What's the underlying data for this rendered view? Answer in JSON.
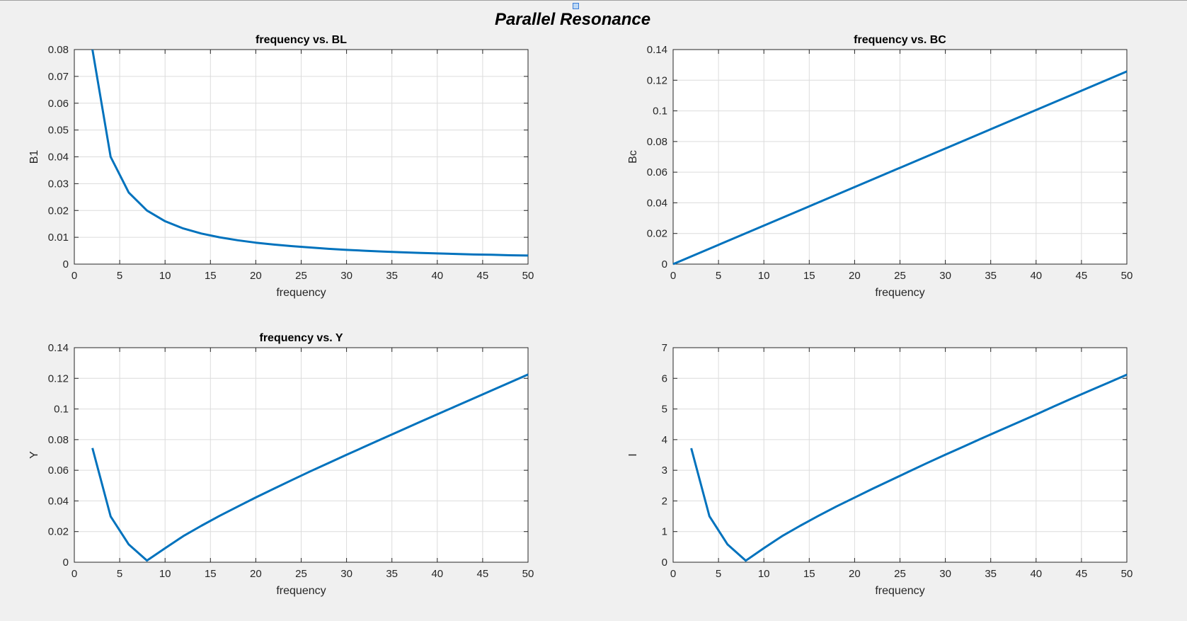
{
  "figure": {
    "title": "Parallel Resonance",
    "line_color": "#0072bd",
    "grid": true
  },
  "chart_data": [
    {
      "type": "line",
      "title": "frequency vs. BL",
      "xlabel": "frequency",
      "ylabel": "B1",
      "xlim": [
        0,
        50
      ],
      "ylim": [
        0,
        0.08
      ],
      "xticks": [
        "0",
        "5",
        "10",
        "15",
        "20",
        "25",
        "30",
        "35",
        "40",
        "45",
        "50"
      ],
      "yticks": [
        "0",
        "0.01",
        "0.02",
        "0.03",
        "0.04",
        "0.05",
        "0.06",
        "0.07",
        "0.08"
      ],
      "series": [
        {
          "x": [
            2,
            4,
            6,
            8,
            10,
            12,
            14,
            16,
            18,
            20,
            22,
            24,
            26,
            28,
            30,
            32,
            34,
            36,
            38,
            40,
            42,
            44,
            46,
            48,
            50
          ],
          "y": [
            0.08,
            0.04,
            0.0267,
            0.02,
            0.016,
            0.0133,
            0.0114,
            0.01,
            0.0089,
            0.008,
            0.0073,
            0.0067,
            0.0062,
            0.0057,
            0.0053,
            0.005,
            0.0047,
            0.0044,
            0.0042,
            0.004,
            0.0038,
            0.0036,
            0.0035,
            0.0033,
            0.0032
          ]
        }
      ]
    },
    {
      "type": "line",
      "title": "frequency vs. BC",
      "xlabel": "frequency",
      "ylabel": "Bc",
      "xlim": [
        0,
        50
      ],
      "ylim": [
        0,
        0.14
      ],
      "xticks": [
        "0",
        "5",
        "10",
        "15",
        "20",
        "25",
        "30",
        "35",
        "40",
        "45",
        "50"
      ],
      "yticks": [
        "0",
        "0.02",
        "0.04",
        "0.06",
        "0.08",
        "0.1",
        "0.12",
        "0.14"
      ],
      "series": [
        {
          "x": [
            0,
            50
          ],
          "y": [
            0,
            0.1257
          ]
        }
      ]
    },
    {
      "type": "line",
      "title": "frequency vs. Y",
      "xlabel": "frequency",
      "ylabel": "Y",
      "xlim": [
        0,
        50
      ],
      "ylim": [
        0,
        0.14
      ],
      "xticks": [
        "0",
        "5",
        "10",
        "15",
        "20",
        "25",
        "30",
        "35",
        "40",
        "45",
        "50"
      ],
      "yticks": [
        "0",
        "0.02",
        "0.04",
        "0.06",
        "0.08",
        "0.1",
        "0.12",
        "0.14"
      ],
      "series": [
        {
          "x": [
            2,
            4,
            6,
            8,
            10,
            12,
            14,
            16,
            18,
            20,
            22,
            24,
            26,
            28,
            30,
            32,
            34,
            36,
            38,
            40,
            42,
            44,
            46,
            48,
            50
          ],
          "y": [
            0.0745,
            0.0299,
            0.0116,
            0.0011,
            0.0091,
            0.017,
            0.0238,
            0.0302,
            0.0363,
            0.0423,
            0.048,
            0.0537,
            0.0593,
            0.0647,
            0.0701,
            0.0754,
            0.0807,
            0.086,
            0.0913,
            0.0965,
            0.1017,
            0.1069,
            0.1121,
            0.1173,
            0.1225
          ]
        }
      ]
    },
    {
      "type": "line",
      "title": "",
      "xlabel": "frequency",
      "ylabel": "I",
      "xlim": [
        0,
        50
      ],
      "ylim": [
        0,
        7
      ],
      "xticks": [
        "0",
        "5",
        "10",
        "15",
        "20",
        "25",
        "30",
        "35",
        "40",
        "45",
        "50"
      ],
      "yticks": [
        "0",
        "1",
        "2",
        "3",
        "4",
        "5",
        "6",
        "7"
      ],
      "series": [
        {
          "x": [
            2,
            4,
            6,
            8,
            10,
            12,
            14,
            16,
            18,
            20,
            22,
            24,
            26,
            28,
            30,
            32,
            34,
            36,
            38,
            40,
            42,
            44,
            46,
            48,
            50
          ],
          "y": [
            3.72,
            1.5,
            0.58,
            0.05,
            0.46,
            0.85,
            1.19,
            1.51,
            1.82,
            2.11,
            2.4,
            2.68,
            2.96,
            3.24,
            3.51,
            3.77,
            4.04,
            4.3,
            4.56,
            4.82,
            5.09,
            5.35,
            5.61,
            5.86,
            6.12
          ]
        }
      ]
    }
  ]
}
